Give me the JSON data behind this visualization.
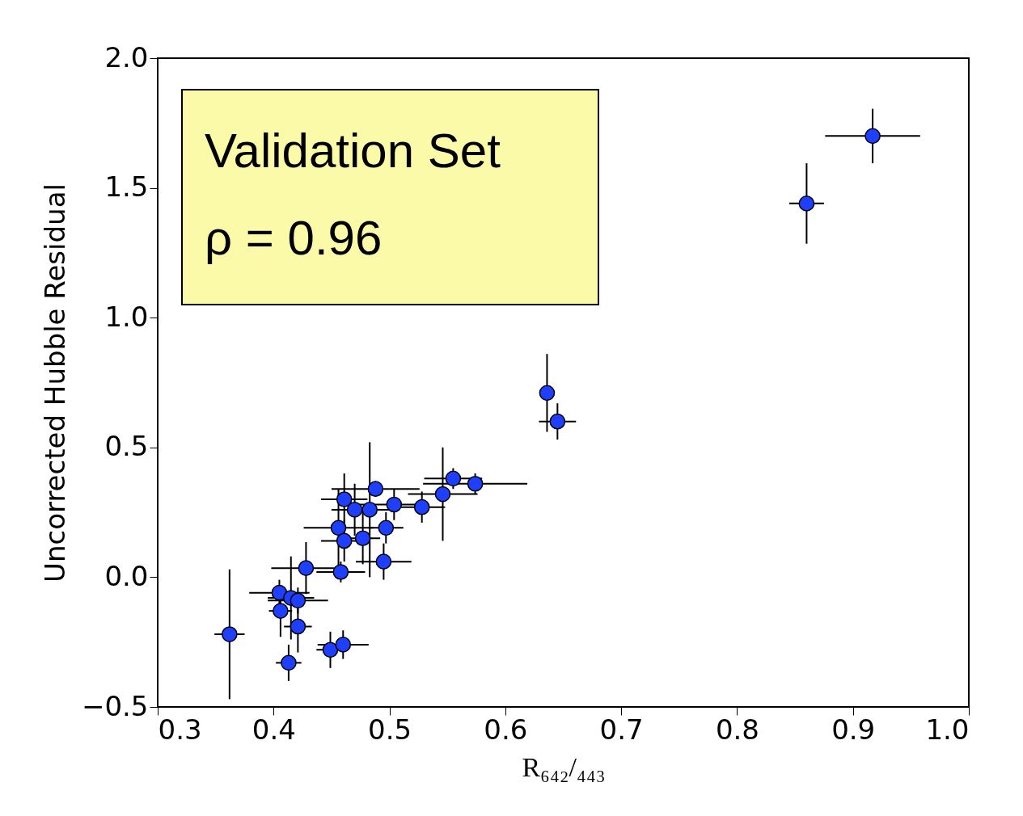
{
  "chart_data": {
    "type": "scatter",
    "xlabel": "R₆₄₂/₄₄₃",
    "ylabel": "Uncorrected Hubble Residual",
    "annotations": [
      "Validation Set",
      "ρ = 0.96"
    ],
    "x": [
      0.362,
      0.405,
      0.415,
      0.421,
      0.406,
      0.421,
      0.413,
      0.449,
      0.46,
      0.428,
      0.458,
      0.495,
      0.456,
      0.461,
      0.477,
      0.483,
      0.488,
      0.461,
      0.47,
      0.504,
      0.497,
      0.528,
      0.546,
      0.555,
      0.574,
      0.636,
      0.645,
      0.86,
      0.917
    ],
    "series": [
      {
        "color": "#1f3fff",
        "values": [
          -0.22,
          -0.06,
          -0.08,
          -0.09,
          -0.13,
          -0.19,
          -0.33,
          -0.28,
          -0.26,
          0.035,
          0.02,
          0.06,
          0.19,
          0.14,
          0.15,
          0.26,
          0.34,
          0.3,
          0.26,
          0.28,
          0.19,
          0.27,
          0.32,
          0.38,
          0.36,
          0.71,
          0.6,
          1.44,
          1.7
        ],
        "errors": [
          0.25,
          0.05,
          0.16,
          0.05,
          0.1,
          0.1,
          0.07,
          0.07,
          0.055,
          0.1,
          0.04,
          0.07,
          0.15,
          0.08,
          0.1,
          0.26,
          0.03,
          0.1,
          0.1,
          0.06,
          0.06,
          0.06,
          0.18,
          0.04,
          0.04,
          0.15,
          0.07,
          0.155,
          0.105
        ],
        "xerrors": [
          0.013,
          0.026,
          0.02,
          0.026,
          0.01,
          0.012,
          0.011,
          0.012,
          0.022,
          0.03,
          0.021,
          0.024,
          0.03,
          0.02,
          0.015,
          0.02,
          0.038,
          0.02,
          0.02,
          0.03,
          0.015,
          0.02,
          0.03,
          0.025,
          0.045,
          0.005,
          0.016,
          0.015,
          0.041
        ]
      }
    ],
    "xlim": [
      0.3,
      1.0
    ],
    "xticks": [
      0.3,
      0.4,
      0.5,
      0.6,
      0.7,
      0.8,
      0.9,
      {
        "value": 1,
        "label": "1.0"
      }
    ],
    "ylim": [
      -0.5,
      2.0
    ],
    "yticks": [
      -0.5,
      {
        "value": 0,
        "label": "0.0"
      },
      0.5,
      {
        "value": 1,
        "label": "1.0"
      },
      1.5,
      {
        "value": 2,
        "label": "2.0"
      }
    ],
    "grid": false,
    "marker": "circle"
  }
}
